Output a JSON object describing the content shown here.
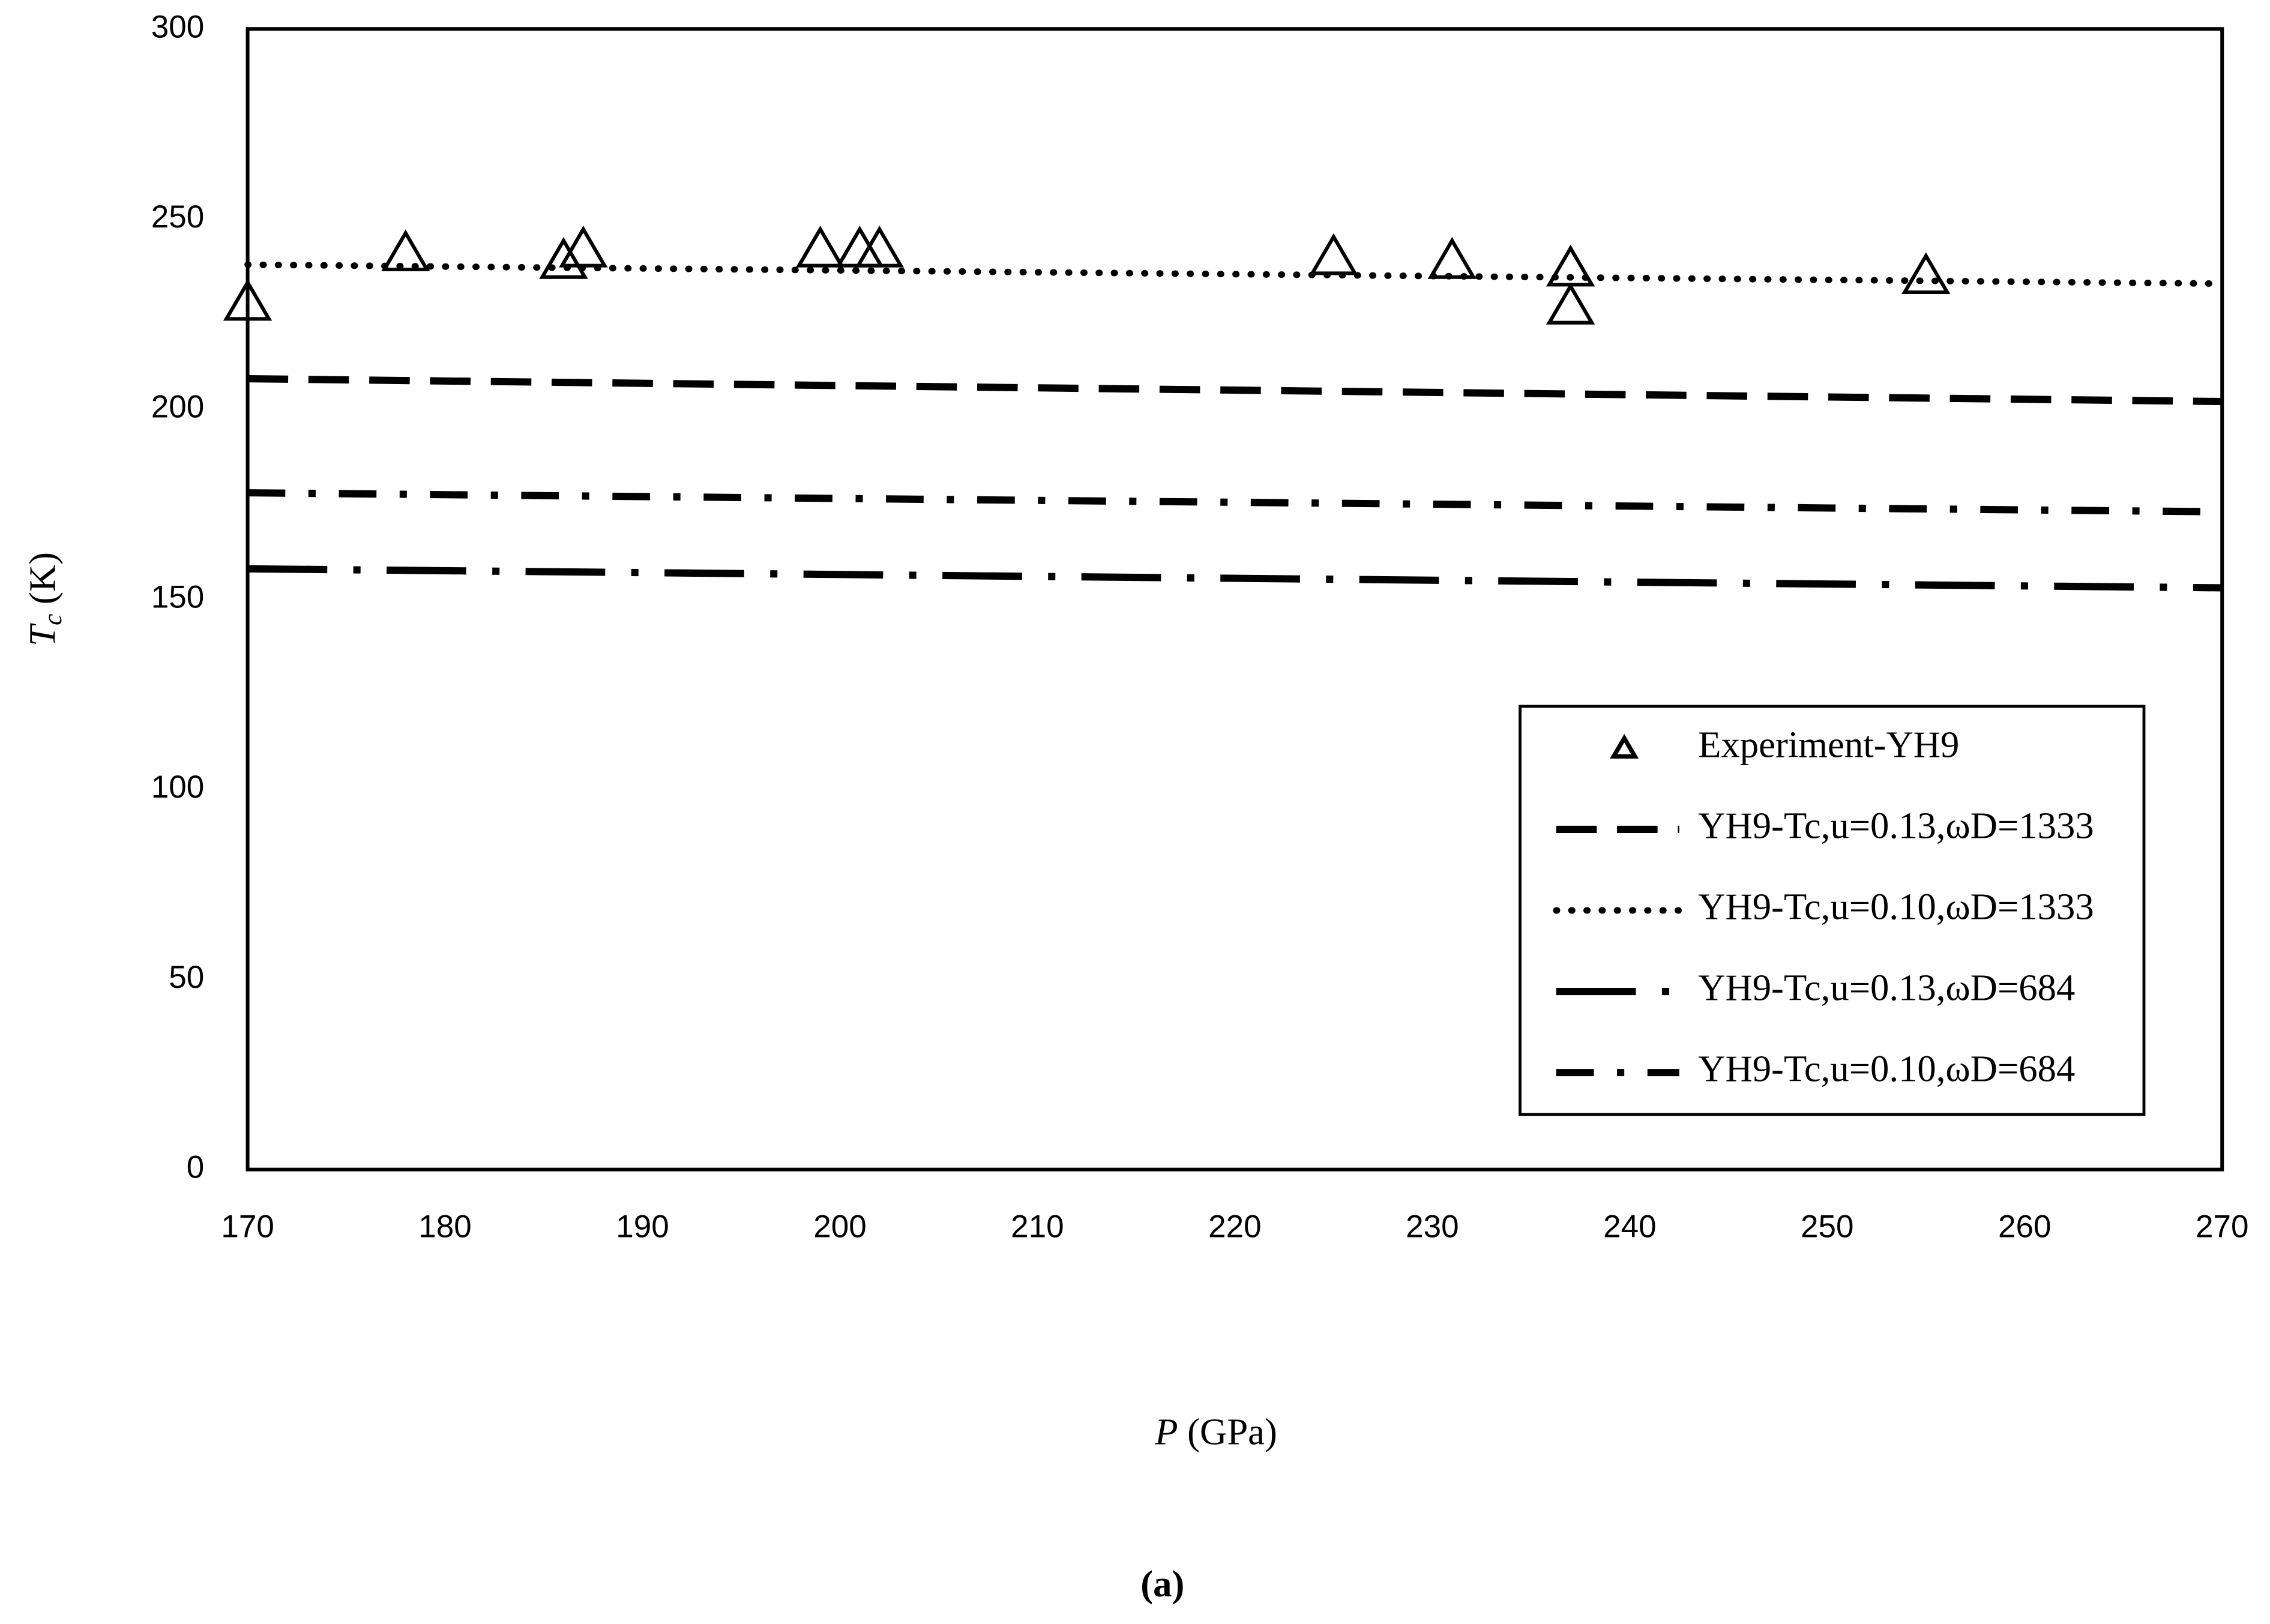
{
  "chart_data": {
    "type": "line",
    "x_label": "P (GPa)",
    "y_label": "Tc (K)",
    "caption": "(a)",
    "xlim": [
      170,
      270
    ],
    "xticks": [
      170,
      180,
      190,
      200,
      210,
      220,
      230,
      240,
      250,
      260,
      270
    ],
    "ylim": [
      0,
      300
    ],
    "yticks": [
      0,
      50,
      100,
      150,
      200,
      250,
      300
    ],
    "grid": false,
    "legend": "lower right",
    "series": [
      {
        "name": "Experiment-YH9",
        "color": "#000000",
        "style": "triangle",
        "x": [
          170,
          178,
          186,
          187,
          199,
          201,
          202,
          225,
          231,
          237,
          237,
          255
        ],
        "values": [
          228,
          241,
          239,
          242,
          242,
          242,
          242,
          240,
          239,
          237,
          227,
          235
        ]
      },
      {
        "name": "YH9-Tc,u=0.13,ωD=1333",
        "color": "#000000",
        "style": "dash",
        "x": [
          170,
          270
        ],
        "values": [
          208,
          202
        ]
      },
      {
        "name": "YH9-Tc,u=0.10,ωD=1333",
        "color": "#000000",
        "style": "dot",
        "x": [
          170,
          270
        ],
        "values": [
          238,
          233
        ]
      },
      {
        "name": "YH9-Tc,u=0.13,ωD=684",
        "color": "#000000",
        "style": "longdashdot",
        "x": [
          170,
          270
        ],
        "values": [
          158,
          153
        ]
      },
      {
        "name": "YH9-Tc,u=0.10,ωD=684",
        "color": "#000000",
        "style": "dashdot",
        "x": [
          170,
          270
        ],
        "values": [
          178,
          173
        ]
      }
    ]
  }
}
